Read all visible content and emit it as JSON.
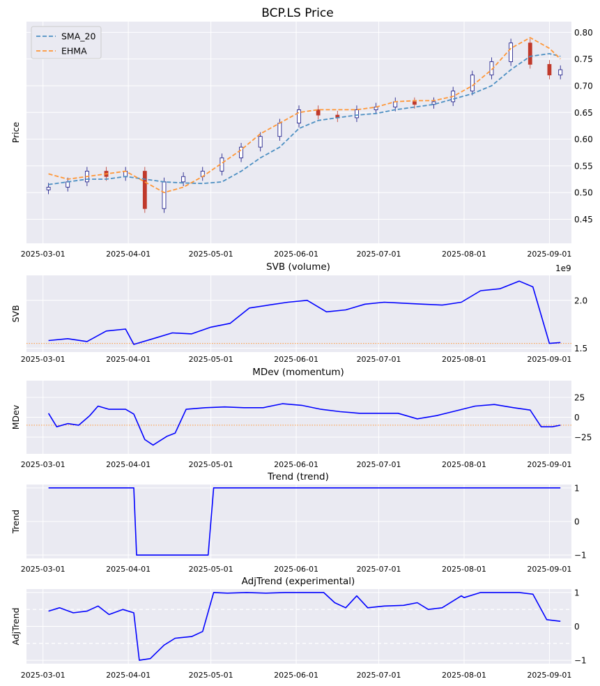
{
  "figure_title": "BCP.LS Price",
  "x_ticks": [
    "2025-03-01",
    "2025-04-01",
    "2025-05-01",
    "2025-06-01",
    "2025-07-01",
    "2025-08-01",
    "2025-09-01"
  ],
  "colors": {
    "sma": "#4c8fc2",
    "ehma": "#ff9636",
    "line": "#0000ff",
    "up": "#0b0b80",
    "down": "#c0392b",
    "ref": "#ff9636"
  },
  "chart_data": [
    {
      "type": "candlestick",
      "title": "",
      "ylabel": "Price",
      "ylim": [
        0.405,
        0.82
      ],
      "yticks": [
        "0.45",
        "0.50",
        "0.55",
        "0.60",
        "0.65",
        "0.70",
        "0.75",
        "0.80"
      ],
      "legend": {
        "position": "top-left",
        "entries": [
          "SMA_20",
          "EHMA"
        ]
      },
      "x": [
        "2025-03-03",
        "2025-03-10",
        "2025-03-17",
        "2025-03-24",
        "2025-03-31",
        "2025-04-07",
        "2025-04-14",
        "2025-04-21",
        "2025-04-28",
        "2025-05-05",
        "2025-05-12",
        "2025-05-19",
        "2025-05-26",
        "2025-06-02",
        "2025-06-09",
        "2025-06-16",
        "2025-06-23",
        "2025-06-30",
        "2025-07-07",
        "2025-07-14",
        "2025-07-21",
        "2025-07-28",
        "2025-08-04",
        "2025-08-11",
        "2025-08-18",
        "2025-08-25",
        "2025-09-01",
        "2025-09-05"
      ],
      "close": [
        0.51,
        0.52,
        0.54,
        0.53,
        0.54,
        0.47,
        0.52,
        0.53,
        0.54,
        0.565,
        0.585,
        0.605,
        0.63,
        0.655,
        0.645,
        0.64,
        0.655,
        0.66,
        0.67,
        0.665,
        0.67,
        0.69,
        0.72,
        0.745,
        0.78,
        0.74,
        0.72,
        0.73
      ],
      "sma_20": [
        0.515,
        0.52,
        0.525,
        0.525,
        0.53,
        0.525,
        0.52,
        0.518,
        0.517,
        0.52,
        0.54,
        0.565,
        0.585,
        0.62,
        0.635,
        0.64,
        0.645,
        0.648,
        0.655,
        0.66,
        0.665,
        0.675,
        0.685,
        0.7,
        0.73,
        0.755,
        0.76,
        0.755
      ],
      "ehma": [
        0.535,
        0.525,
        0.53,
        0.535,
        0.54,
        0.52,
        0.5,
        0.51,
        0.53,
        0.555,
        0.58,
        0.61,
        0.63,
        0.65,
        0.655,
        0.655,
        0.655,
        0.66,
        0.67,
        0.672,
        0.672,
        0.68,
        0.7,
        0.73,
        0.77,
        0.79,
        0.77,
        0.75
      ]
    },
    {
      "type": "line",
      "title": "SVB (volume)",
      "ylabel": "SVB",
      "scale_label": "1e9",
      "ylim": [
        1.46,
        2.26
      ],
      "yticks": [
        "1.5",
        "2.0"
      ],
      "reference_line": 1.55,
      "x": [
        "2025-03-03",
        "2025-03-10",
        "2025-03-17",
        "2025-03-24",
        "2025-03-31",
        "2025-04-03",
        "2025-04-10",
        "2025-04-17",
        "2025-04-24",
        "2025-05-01",
        "2025-05-08",
        "2025-05-15",
        "2025-05-22",
        "2025-05-29",
        "2025-06-05",
        "2025-06-12",
        "2025-06-19",
        "2025-06-26",
        "2025-07-03",
        "2025-07-10",
        "2025-07-17",
        "2025-07-24",
        "2025-07-31",
        "2025-08-07",
        "2025-08-14",
        "2025-08-21",
        "2025-08-26",
        "2025-09-01",
        "2025-09-05"
      ],
      "values": [
        1.58,
        1.6,
        1.57,
        1.68,
        1.7,
        1.54,
        1.6,
        1.66,
        1.65,
        1.72,
        1.76,
        1.92,
        1.95,
        1.98,
        2.0,
        1.88,
        1.9,
        1.96,
        1.98,
        1.97,
        1.96,
        1.95,
        1.98,
        2.1,
        2.12,
        2.2,
        2.14,
        1.55,
        1.56
      ]
    },
    {
      "type": "line",
      "title": "MDev (momentum)",
      "ylabel": "MDev",
      "ylim": [
        -46,
        46
      ],
      "yticks": [
        "25",
        "0",
        "-25"
      ],
      "reference_line": -10,
      "x": [
        "2025-03-03",
        "2025-03-06",
        "2025-03-10",
        "2025-03-14",
        "2025-03-18",
        "2025-03-21",
        "2025-03-25",
        "2025-03-31",
        "2025-04-03",
        "2025-04-07",
        "2025-04-10",
        "2025-04-15",
        "2025-04-18",
        "2025-04-22",
        "2025-04-29",
        "2025-05-06",
        "2025-05-13",
        "2025-05-20",
        "2025-05-27",
        "2025-06-03",
        "2025-06-10",
        "2025-06-17",
        "2025-06-24",
        "2025-07-01",
        "2025-07-08",
        "2025-07-15",
        "2025-07-22",
        "2025-07-29",
        "2025-08-05",
        "2025-08-12",
        "2025-08-19",
        "2025-08-25",
        "2025-08-29",
        "2025-09-02",
        "2025-09-05"
      ],
      "values": [
        5,
        -12,
        -8,
        -10,
        2,
        14,
        10,
        10,
        4,
        -28,
        -35,
        -24,
        -20,
        10,
        12,
        13,
        12,
        12,
        17,
        15,
        10,
        7,
        5,
        5,
        5,
        -2,
        2,
        8,
        14,
        16,
        12,
        9,
        -12,
        -12,
        -10
      ]
    },
    {
      "type": "line",
      "title": "Trend (trend)",
      "ylabel": "Trend",
      "ylim": [
        -1.1,
        1.1
      ],
      "yticks": [
        "1",
        "0",
        "-1"
      ],
      "x": [
        "2025-03-03",
        "2025-04-03",
        "2025-04-04",
        "2025-04-30",
        "2025-05-02",
        "2025-09-05"
      ],
      "values": [
        1,
        1,
        -1,
        -1,
        1,
        1
      ]
    },
    {
      "type": "line",
      "title": "AdjTrend (experimental)",
      "ylabel": "AdjTrend",
      "ylim": [
        -1.1,
        1.1
      ],
      "yticks": [
        "1",
        "0",
        "-1"
      ],
      "reference_lines": [
        0.5,
        -0.5
      ],
      "x": [
        "2025-03-03",
        "2025-03-07",
        "2025-03-12",
        "2025-03-17",
        "2025-03-21",
        "2025-03-25",
        "2025-03-30",
        "2025-04-03",
        "2025-04-05",
        "2025-04-09",
        "2025-04-14",
        "2025-04-18",
        "2025-04-24",
        "2025-04-28",
        "2025-05-02",
        "2025-05-07",
        "2025-05-14",
        "2025-05-21",
        "2025-05-28",
        "2025-06-04",
        "2025-06-11",
        "2025-06-15",
        "2025-06-19",
        "2025-06-23",
        "2025-06-27",
        "2025-07-03",
        "2025-07-10",
        "2025-07-15",
        "2025-07-19",
        "2025-07-24",
        "2025-07-31",
        "2025-08-01",
        "2025-08-07",
        "2025-08-14",
        "2025-08-21",
        "2025-08-26",
        "2025-08-31",
        "2025-09-05"
      ],
      "values": [
        0.45,
        0.55,
        0.4,
        0.45,
        0.6,
        0.35,
        0.5,
        0.4,
        -1.0,
        -0.95,
        -0.55,
        -0.35,
        -0.3,
        -0.15,
        1.0,
        0.98,
        1.0,
        0.98,
        1.0,
        1.0,
        1.0,
        0.7,
        0.55,
        0.9,
        0.55,
        0.6,
        0.62,
        0.7,
        0.5,
        0.55,
        0.9,
        0.85,
        1.0,
        1.0,
        1.0,
        0.95,
        0.2,
        0.15
      ]
    }
  ]
}
